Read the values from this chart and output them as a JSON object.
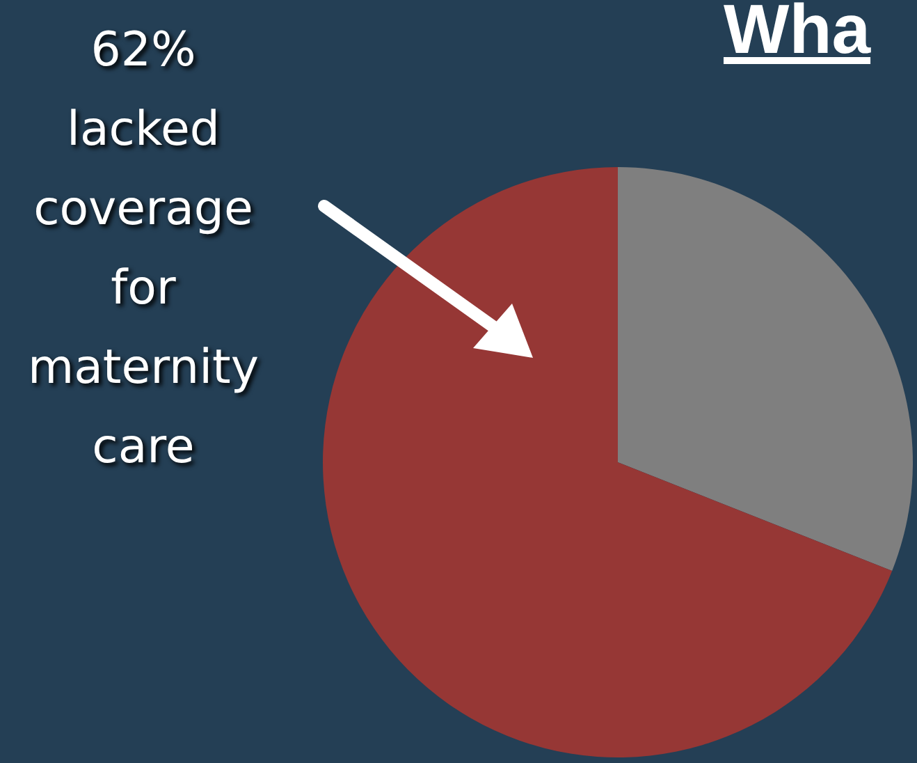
{
  "chart_data": {
    "type": "pie",
    "title": "Wha",
    "categories": [
      null,
      null
    ],
    "values": [
      31,
      69
    ],
    "colors": [
      "#7f7f7f",
      "#963735"
    ],
    "annotations": [
      "62% lacked coverage for maternity care"
    ]
  }
}
